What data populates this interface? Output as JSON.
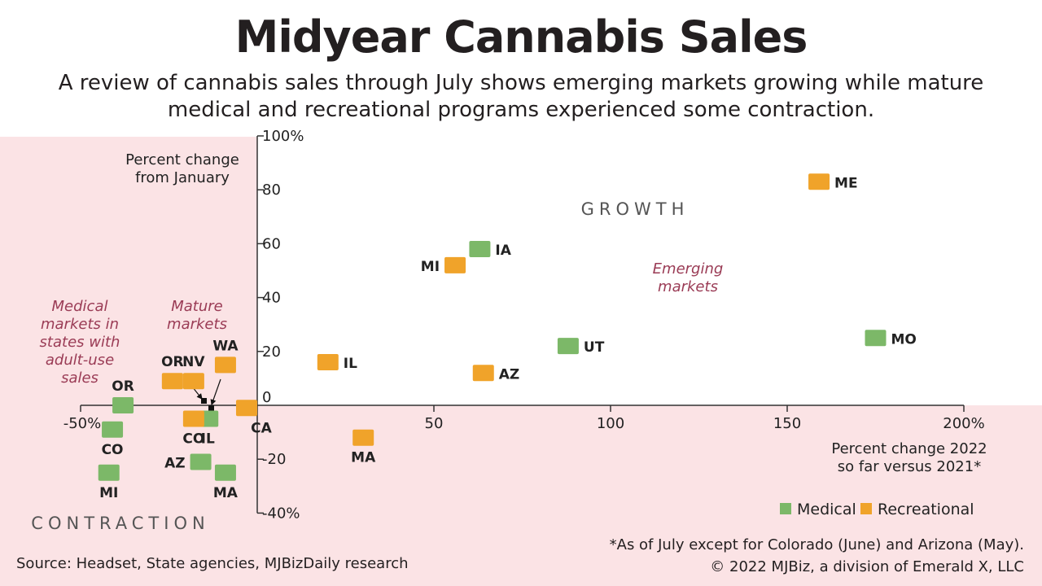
{
  "title": "Midyear Cannabis Sales",
  "subtitle": "A review of cannabis sales through July shows emerging markets growing while mature medical and recreational programs experienced some contraction.",
  "source": "Source: Headset, State agencies, MJBizDaily research",
  "footnote": "*As of July except for Colorado (June) and Arizona (May).",
  "copyright": "© 2022 MJBiz, a division of Emerald X, LLC",
  "colors": {
    "medical": "#7cb868",
    "recreational": "#f0a32a",
    "contraction_bg": "#fbe3e5",
    "annotation": "#9a3b55"
  },
  "chart_data": {
    "type": "scatter",
    "xlabel": "Percent change 2022 so far versus 2021*",
    "xlabel_lines": [
      "Percent change 2022",
      "so far versus 2021*"
    ],
    "ylabel_lines": [
      "Percent change",
      "from January"
    ],
    "xlim": [
      -50,
      200
    ],
    "ylim": [
      -40,
      100
    ],
    "x_ticks": [
      {
        "value": -50,
        "label": "-50%"
      },
      {
        "value": 50,
        "label": "50"
      },
      {
        "value": 100,
        "label": "100"
      },
      {
        "value": 150,
        "label": "150"
      },
      {
        "value": 200,
        "label": "200%"
      }
    ],
    "y_ticks": [
      {
        "value": 100,
        "label": "100%"
      },
      {
        "value": 80,
        "label": "80"
      },
      {
        "value": 60,
        "label": "60"
      },
      {
        "value": 40,
        "label": "40"
      },
      {
        "value": 20,
        "label": "20"
      },
      {
        "value": 0,
        "label": "0"
      },
      {
        "value": -20,
        "label": "-20"
      },
      {
        "value": -40,
        "label": "-40%"
      }
    ],
    "legend": [
      {
        "name": "Medical",
        "color": "#7cb868"
      },
      {
        "name": "Recreational",
        "color": "#f0a32a"
      }
    ],
    "legend_position": "bottom-right",
    "series": [
      {
        "name": "Medical",
        "points": [
          {
            "state": "OR",
            "x": -38,
            "y": 0
          },
          {
            "state": "CO",
            "x": -41,
            "y": -9
          },
          {
            "state": "MI",
            "x": -42,
            "y": -25
          },
          {
            "state": "AZ",
            "x": -16,
            "y": -21
          },
          {
            "state": "MA",
            "x": -9,
            "y": -25
          },
          {
            "state": "IL",
            "x": -14,
            "y": -5
          },
          {
            "state": "IA",
            "x": 63,
            "y": 58
          },
          {
            "state": "UT",
            "x": 88,
            "y": 22
          },
          {
            "state": "MO",
            "x": 175,
            "y": 25
          }
        ]
      },
      {
        "name": "Recreational",
        "points": [
          {
            "state": "OR",
            "x": -24,
            "y": 9
          },
          {
            "state": "NV",
            "x": -18,
            "y": 9
          },
          {
            "state": "WA",
            "x": -9,
            "y": 15
          },
          {
            "state": "CO",
            "x": -18,
            "y": -5
          },
          {
            "state": "CA",
            "x": -3,
            "y": -1
          },
          {
            "state": "IL",
            "x": 20,
            "y": 16
          },
          {
            "state": "MA",
            "x": 30,
            "y": -12
          },
          {
            "state": "MI",
            "x": 56,
            "y": 52
          },
          {
            "state": "AZ",
            "x": 64,
            "y": 12
          },
          {
            "state": "ME",
            "x": 159,
            "y": 83
          }
        ]
      }
    ],
    "annotations": [
      {
        "text": "GROWTH"
      },
      {
        "text": "CONTRACTION"
      },
      {
        "text": "Emerging markets",
        "lines": [
          "Emerging",
          "markets"
        ]
      },
      {
        "text": "Mature markets",
        "lines": [
          "Mature",
          "markets"
        ]
      },
      {
        "text": "Medical markets in states with adult-use sales",
        "lines": [
          "Medical",
          "markets in",
          "states with",
          "adult-use",
          "sales"
        ]
      }
    ]
  }
}
